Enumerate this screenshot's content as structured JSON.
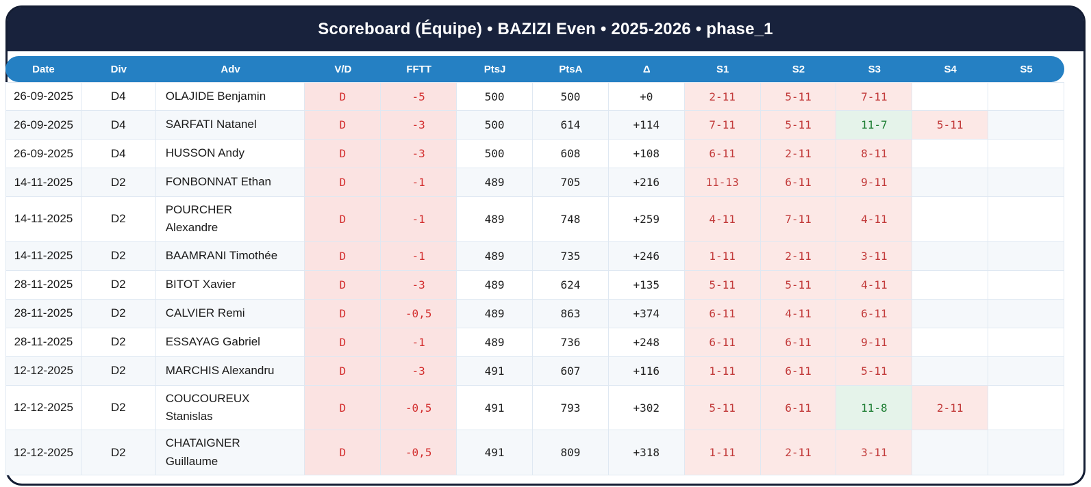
{
  "title": "Scoreboard (Équipe) • BAZIZI Even • 2025-2026 • phase_1",
  "columns": [
    "Date",
    "Div",
    "Adv",
    "V/D",
    "FFTT",
    "PtsJ",
    "PtsA",
    "Δ",
    "S1",
    "S2",
    "S3",
    "S4",
    "S5"
  ],
  "colors": {
    "title_bg": "#18223c",
    "header_bg": "#2580c3",
    "loss_text": "#c23a3a",
    "loss_bg": "#fce8e6",
    "defeat_text": "#d32f2f",
    "defeat_bg": "#fbe3e2",
    "win_text": "#1e7e34",
    "win_bg": "#e5f3ea",
    "stripe_bg": "#f5f8fb"
  },
  "rows": [
    {
      "date": "26-09-2025",
      "div": "D4",
      "adv": "OLAJIDE Benjamin",
      "vd": "D",
      "fftt": "-5",
      "ptsj": "500",
      "ptsa": "500",
      "delta": "+0",
      "sets": [
        "2-11",
        "5-11",
        "7-11",
        "",
        ""
      ]
    },
    {
      "date": "26-09-2025",
      "div": "D4",
      "adv": "SARFATI Natanel",
      "vd": "D",
      "fftt": "-3",
      "ptsj": "500",
      "ptsa": "614",
      "delta": "+114",
      "sets": [
        "7-11",
        "5-11",
        "11-7",
        "5-11",
        ""
      ]
    },
    {
      "date": "26-09-2025",
      "div": "D4",
      "adv": "HUSSON Andy",
      "vd": "D",
      "fftt": "-3",
      "ptsj": "500",
      "ptsa": "608",
      "delta": "+108",
      "sets": [
        "6-11",
        "2-11",
        "8-11",
        "",
        ""
      ]
    },
    {
      "date": "14-11-2025",
      "div": "D2",
      "adv": "FONBONNAT Ethan",
      "vd": "D",
      "fftt": "-1",
      "ptsj": "489",
      "ptsa": "705",
      "delta": "+216",
      "sets": [
        "11-13",
        "6-11",
        "9-11",
        "",
        ""
      ]
    },
    {
      "date": "14-11-2025",
      "div": "D2",
      "adv": "POURCHER Alexandre",
      "vd": "D",
      "fftt": "-1",
      "ptsj": "489",
      "ptsa": "748",
      "delta": "+259",
      "sets": [
        "4-11",
        "7-11",
        "4-11",
        "",
        ""
      ]
    },
    {
      "date": "14-11-2025",
      "div": "D2",
      "adv": "BAAMRANI Timothée",
      "vd": "D",
      "fftt": "-1",
      "ptsj": "489",
      "ptsa": "735",
      "delta": "+246",
      "sets": [
        "1-11",
        "2-11",
        "3-11",
        "",
        ""
      ]
    },
    {
      "date": "28-11-2025",
      "div": "D2",
      "adv": "BITOT Xavier",
      "vd": "D",
      "fftt": "-3",
      "ptsj": "489",
      "ptsa": "624",
      "delta": "+135",
      "sets": [
        "5-11",
        "5-11",
        "4-11",
        "",
        ""
      ]
    },
    {
      "date": "28-11-2025",
      "div": "D2",
      "adv": "CALVIER Remi",
      "vd": "D",
      "fftt": "-0,5",
      "ptsj": "489",
      "ptsa": "863",
      "delta": "+374",
      "sets": [
        "6-11",
        "4-11",
        "6-11",
        "",
        ""
      ]
    },
    {
      "date": "28-11-2025",
      "div": "D2",
      "adv": "ESSAYAG Gabriel",
      "vd": "D",
      "fftt": "-1",
      "ptsj": "489",
      "ptsa": "736",
      "delta": "+248",
      "sets": [
        "6-11",
        "6-11",
        "9-11",
        "",
        ""
      ]
    },
    {
      "date": "12-12-2025",
      "div": "D2",
      "adv": "MARCHIS Alexandru",
      "vd": "D",
      "fftt": "-3",
      "ptsj": "491",
      "ptsa": "607",
      "delta": "+116",
      "sets": [
        "1-11",
        "6-11",
        "5-11",
        "",
        ""
      ]
    },
    {
      "date": "12-12-2025",
      "div": "D2",
      "adv": "COUCOUREUX Stanislas",
      "vd": "D",
      "fftt": "-0,5",
      "ptsj": "491",
      "ptsa": "793",
      "delta": "+302",
      "sets": [
        "5-11",
        "6-11",
        "11-8",
        "2-11",
        ""
      ]
    },
    {
      "date": "12-12-2025",
      "div": "D2",
      "adv": "CHATAIGNER Guillaume",
      "vd": "D",
      "fftt": "-0,5",
      "ptsj": "491",
      "ptsa": "809",
      "delta": "+318",
      "sets": [
        "1-11",
        "2-11",
        "3-11",
        "",
        ""
      ]
    }
  ]
}
